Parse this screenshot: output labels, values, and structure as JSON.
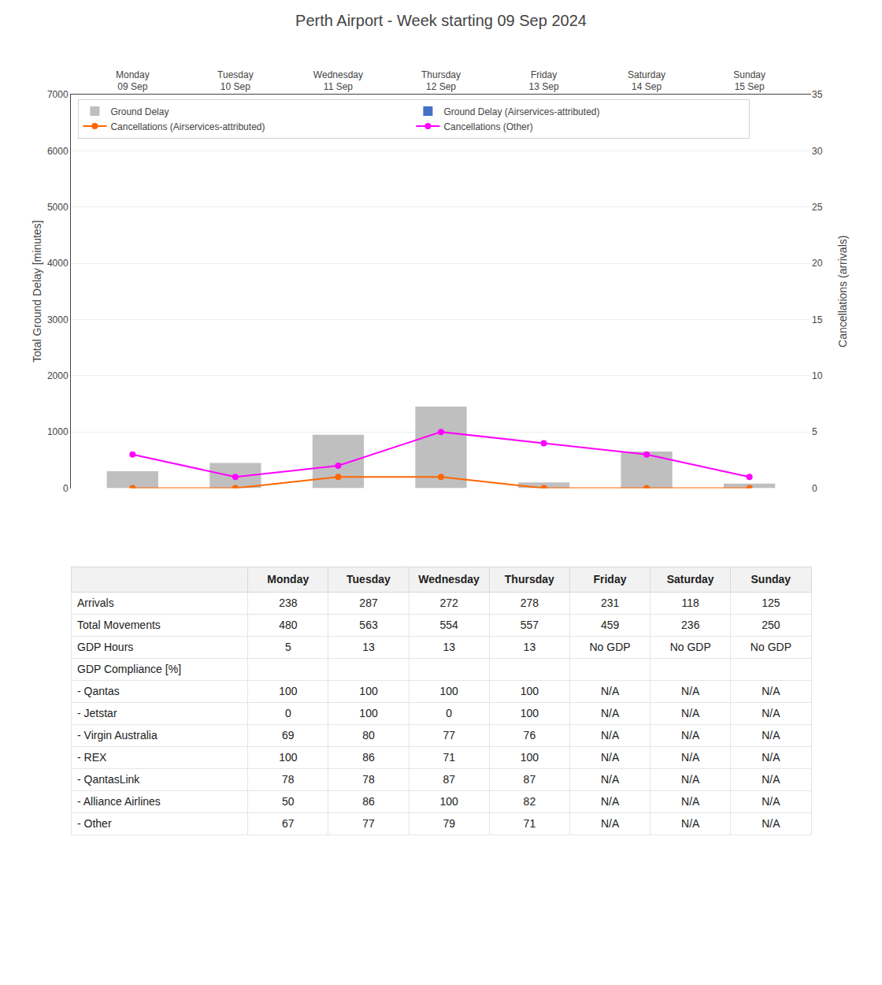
{
  "chart_data": [
    {
      "type": "bar",
      "title": "Perth Airport - Week starting 09 Sep 2024",
      "categories": [
        "Monday\n09 Sep",
        "Tuesday\n10 Sep",
        "Wednesday\n11 Sep",
        "Thursday\n12 Sep",
        "Friday\n13 Sep",
        "Saturday\n14 Sep",
        "Sunday\n15 Sep"
      ],
      "ylabel": "Total Ground Delay [minutes]",
      "y2label": "Cancellations (arrivals)",
      "series": [
        {
          "name": "Ground Delay",
          "color": "#bfbfbf",
          "values": [
            300,
            450,
            950,
            1450,
            100,
            650,
            80
          ]
        },
        {
          "name": "Ground Delay (Airservices-attributed)",
          "color": "#4472c4",
          "values": [
            0,
            0,
            0,
            0,
            0,
            0,
            0
          ]
        },
        {
          "name": "Cancellations (Airservices-attributed)",
          "type": "line",
          "axis": "y2",
          "color": "#ff6600",
          "marker": "circle",
          "values": [
            0,
            0,
            1,
            1,
            0,
            0,
            0
          ]
        },
        {
          "name": "Cancellations (Other)",
          "type": "line",
          "axis": "y2",
          "color": "#ff00ff",
          "marker": "circle",
          "values": [
            3,
            1,
            2,
            5,
            4,
            3,
            1
          ]
        }
      ],
      "ylim": [
        0,
        7000
      ],
      "yticks": [
        0,
        1000,
        2000,
        3000,
        4000,
        5000,
        6000,
        7000
      ],
      "y2lim": [
        0,
        35
      ],
      "y2ticks": [
        0,
        5,
        10,
        15,
        20,
        25,
        30,
        35
      ],
      "grid": true,
      "legend": "upper left"
    },
    {
      "type": "table",
      "columns": [
        null,
        "Monday",
        "Tuesday",
        "Wednesday",
        "Thursday",
        "Friday",
        "Saturday",
        "Sunday"
      ],
      "rows": [
        [
          "Arrivals",
          "238",
          "287",
          "272",
          "278",
          "231",
          "118",
          "125"
        ],
        [
          "Total Movements",
          "480",
          "563",
          "554",
          "557",
          "459",
          "236",
          "250"
        ],
        [
          "GDP Hours",
          "5",
          "13",
          "13",
          "13",
          "No GDP",
          "No GDP",
          "No GDP"
        ],
        [
          "GDP Compliance [%]",
          null,
          null,
          null,
          null,
          null,
          null,
          null
        ],
        [
          "- Qantas",
          "100",
          "100",
          "100",
          "100",
          "N/A",
          "N/A",
          "N/A"
        ],
        [
          "- Jetstar",
          "0",
          "100",
          "0",
          "100",
          "N/A",
          "N/A",
          "N/A"
        ],
        [
          "- Virgin Australia",
          "69",
          "80",
          "77",
          "76",
          "N/A",
          "N/A",
          "N/A"
        ],
        [
          "- REX",
          "100",
          "86",
          "71",
          "100",
          "N/A",
          "N/A",
          "N/A"
        ],
        [
          "- QantasLink",
          "78",
          "78",
          "87",
          "87",
          "N/A",
          "N/A",
          "N/A"
        ],
        [
          "- Alliance Airlines",
          "50",
          "86",
          "100",
          "82",
          "N/A",
          "N/A",
          "N/A"
        ],
        [
          "- Other",
          "67",
          "77",
          "79",
          "71",
          "N/A",
          "N/A",
          "N/A"
        ]
      ]
    }
  ]
}
